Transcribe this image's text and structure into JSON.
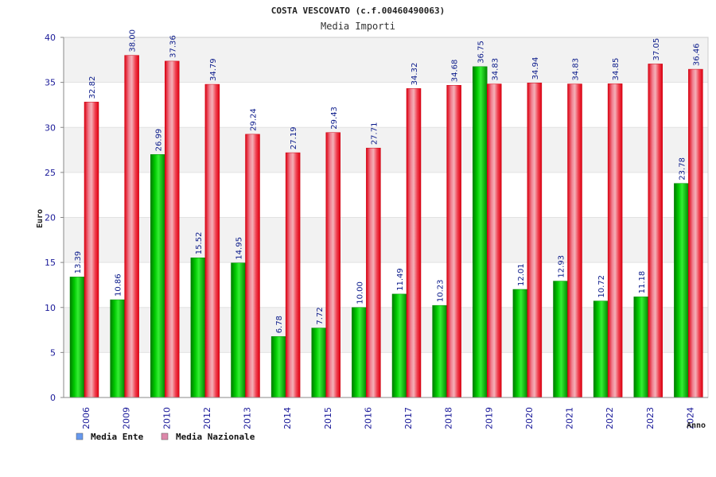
{
  "chart_data": {
    "type": "bar",
    "title": "COSTA VESCOVATO (c.f.00460490063)",
    "subtitle": "Media Importi",
    "xlabel": "Anno",
    "ylabel": "Euro",
    "ylim": [
      0,
      40
    ],
    "yticks": [
      "0",
      "5",
      "10",
      "15",
      "20",
      "25",
      "30",
      "35",
      "40"
    ],
    "grid": true,
    "legend_position": "bottom-left",
    "categories": [
      "2006",
      "2009",
      "2010",
      "2012",
      "2013",
      "2014",
      "2015",
      "2016",
      "2017",
      "2018",
      "2019",
      "2020",
      "2021",
      "2022",
      "2023",
      "2024"
    ],
    "series": [
      {
        "name": "Media Ente",
        "color": "#00aa00",
        "legend_color": "#6699ee",
        "values": [
          13.39,
          10.86,
          26.99,
          15.52,
          14.95,
          6.78,
          7.72,
          10.0,
          11.49,
          10.23,
          36.75,
          12.01,
          12.93,
          10.72,
          11.18,
          23.78
        ],
        "labels": [
          "13.39",
          "10.86",
          "26.99",
          "15.52",
          "14.95",
          "6.78",
          "7.72",
          "10.00",
          "11.49",
          "10.23",
          "36.75",
          "12.01",
          "12.93",
          "10.72",
          "11.18",
          "23.78"
        ]
      },
      {
        "name": "Media Nazionale",
        "color": "#ee1122",
        "legend_color": "#dd88aa",
        "values": [
          32.82,
          38.0,
          37.36,
          34.79,
          29.24,
          27.19,
          29.43,
          27.71,
          34.32,
          34.68,
          34.83,
          34.94,
          34.83,
          34.85,
          37.05,
          36.46
        ],
        "labels": [
          "32.82",
          "38.00",
          "37.36",
          "34.79",
          "29.24",
          "27.19",
          "29.43",
          "27.71",
          "34.32",
          "34.68",
          "34.83",
          "34.94",
          "34.83",
          "34.85",
          "37.05",
          "36.46"
        ]
      }
    ]
  }
}
